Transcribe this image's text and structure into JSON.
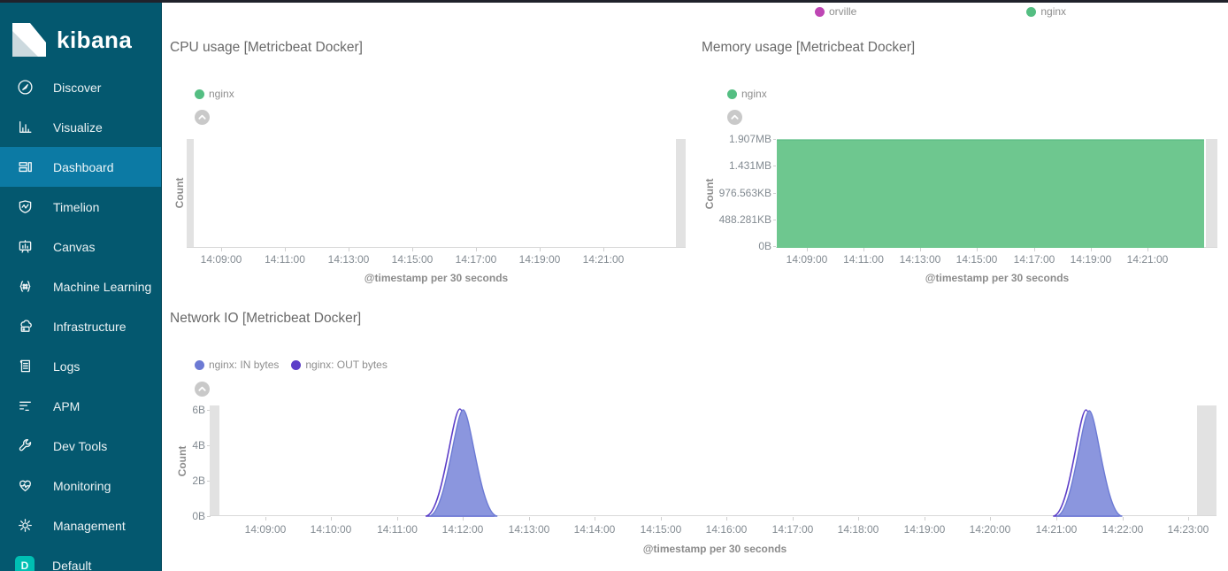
{
  "brand": {
    "name": "kibana"
  },
  "sidebar": {
    "items": [
      {
        "label": "Discover",
        "icon": "discover-icon",
        "active": false
      },
      {
        "label": "Visualize",
        "icon": "visualize-icon",
        "active": false
      },
      {
        "label": "Dashboard",
        "icon": "dashboard-icon",
        "active": true
      },
      {
        "label": "Timelion",
        "icon": "timelion-icon",
        "active": false
      },
      {
        "label": "Canvas",
        "icon": "canvas-icon",
        "active": false
      },
      {
        "label": "Machine Learning",
        "icon": "machine-learning-icon",
        "active": false
      },
      {
        "label": "Infrastructure",
        "icon": "infrastructure-icon",
        "active": false
      },
      {
        "label": "Logs",
        "icon": "logs-icon",
        "active": false
      },
      {
        "label": "APM",
        "icon": "apm-icon",
        "active": false
      },
      {
        "label": "Dev Tools",
        "icon": "dev-tools-icon",
        "active": false
      },
      {
        "label": "Monitoring",
        "icon": "monitoring-icon",
        "active": false
      },
      {
        "label": "Management",
        "icon": "management-icon",
        "active": false
      },
      {
        "label": "Default",
        "icon": "space-badge",
        "badge": "D",
        "active": false
      }
    ]
  },
  "top_panel": {
    "legend": [
      {
        "label": "orville",
        "color": "#be46b4"
      },
      {
        "label": "nginx",
        "color": "#54be82"
      }
    ]
  },
  "panels": {
    "cpu": {
      "title": "CPU usage [Metricbeat Docker]",
      "legend": [
        {
          "label": "nginx",
          "color": "#54be82"
        }
      ],
      "ylabel": "Count",
      "xlabel": "@timestamp per 30 seconds",
      "x_ticks": [
        "14:09:00",
        "14:11:00",
        "14:13:00",
        "14:15:00",
        "14:17:00",
        "14:19:00",
        "14:21:00"
      ],
      "y_ticks": []
    },
    "memory": {
      "title": "Memory usage [Metricbeat Docker]",
      "legend": [
        {
          "label": "nginx",
          "color": "#54be82"
        }
      ],
      "ylabel": "Count",
      "xlabel": "@timestamp per 30 seconds",
      "x_ticks": [
        "14:09:00",
        "14:11:00",
        "14:13:00",
        "14:15:00",
        "14:17:00",
        "14:19:00",
        "14:21:00"
      ],
      "y_ticks": [
        "1.907MB",
        "1.431MB",
        "976.563KB",
        "488.281KB",
        "0B"
      ]
    },
    "network": {
      "title": "Network IO [Metricbeat Docker]",
      "legend": [
        {
          "label": "nginx: IN bytes",
          "color": "#6c7ad4"
        },
        {
          "label": "nginx: OUT bytes",
          "color": "#5c3ec8"
        }
      ],
      "ylabel": "Count",
      "xlabel": "@timestamp per 30 seconds",
      "x_ticks": [
        "14:09:00",
        "14:10:00",
        "14:11:00",
        "14:12:00",
        "14:13:00",
        "14:14:00",
        "14:15:00",
        "14:16:00",
        "14:17:00",
        "14:18:00",
        "14:19:00",
        "14:20:00",
        "14:21:00",
        "14:22:00",
        "14:23:00"
      ],
      "y_ticks": [
        "6B",
        "4B",
        "2B",
        "0B"
      ]
    }
  },
  "chart_data": [
    {
      "type": "area",
      "title": "CPU usage [Metricbeat Docker]",
      "xlabel": "@timestamp per 30 seconds",
      "ylabel": "Count",
      "x_ticks": [
        "14:09:00",
        "14:11:00",
        "14:13:00",
        "14:15:00",
        "14:17:00",
        "14:19:00",
        "14:21:00"
      ],
      "series": [
        {
          "name": "nginx",
          "color": "#54be82",
          "values": []
        }
      ],
      "note": "empty plot area, no data drawn, gray endzones at both edges"
    },
    {
      "type": "area",
      "title": "Memory usage [Metricbeat Docker]",
      "xlabel": "@timestamp per 30 seconds",
      "ylabel": "Count",
      "x_ticks": [
        "14:09:00",
        "14:11:00",
        "14:13:00",
        "14:15:00",
        "14:17:00",
        "14:19:00",
        "14:21:00"
      ],
      "y_tick_labels": [
        "1.907MB",
        "1.431MB",
        "976.563KB",
        "488.281KB",
        "0B"
      ],
      "ylim_bytes": [
        0,
        2000000
      ],
      "series": [
        {
          "name": "nginx",
          "color": "#6ec78f",
          "constant_value_label": "1.907MB",
          "constant_value_bytes": 2000000
        }
      ]
    },
    {
      "type": "area",
      "title": "Network IO [Metricbeat Docker]",
      "xlabel": "@timestamp per 30 seconds",
      "ylabel": "Count",
      "x_ticks": [
        "14:09:00",
        "14:10:00",
        "14:11:00",
        "14:12:00",
        "14:13:00",
        "14:14:00",
        "14:15:00",
        "14:16:00",
        "14:17:00",
        "14:18:00",
        "14:19:00",
        "14:20:00",
        "14:21:00",
        "14:22:00",
        "14:23:00"
      ],
      "y_tick_labels": [
        "6B",
        "4B",
        "2B",
        "0B"
      ],
      "ylim_bytes": [
        0,
        6
      ],
      "series": [
        {
          "name": "nginx: IN bytes",
          "color": "#6c7ad4",
          "fill": "#8b96de",
          "peaks": [
            {
              "time_min": 12.0,
              "value_bytes": 6.0,
              "half_width_min": 0.52
            },
            {
              "time_min": 21.5,
              "value_bytes": 5.95,
              "half_width_min": 0.5
            }
          ]
        },
        {
          "name": "nginx: OUT bytes",
          "color": "#5c3ec8",
          "fill": "none",
          "peaks": [
            {
              "time_min": 11.95,
              "value_bytes": 6.05,
              "half_width_min": 0.52
            },
            {
              "time_min": 21.45,
              "value_bytes": 6.0,
              "half_width_min": 0.5
            }
          ]
        }
      ]
    }
  ],
  "colors": {
    "sidebar_bg": "#04586f",
    "sidebar_active_bg": "#0c7aa4",
    "space_badge": "#00bfb3",
    "green_area": "#6ec78f",
    "green_dot": "#54be82",
    "in_bytes": "#6c7ad4",
    "out_bytes": "#5c3ec8",
    "orville": "#be46b4",
    "endzone": "#e2e2e2"
  }
}
